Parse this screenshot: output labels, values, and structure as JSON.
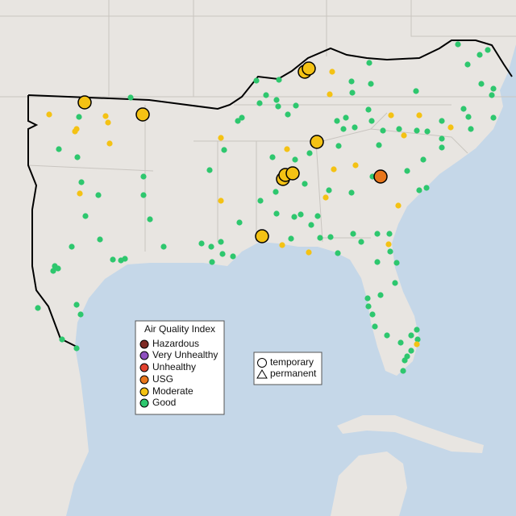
{
  "legend": {
    "title": "Air Quality Index",
    "items": [
      {
        "label": "Hazardous",
        "color": "#7e2b25"
      },
      {
        "label": "Very Unhealthy",
        "color": "#8e4fbf"
      },
      {
        "label": "Unhealthy",
        "color": "#e2422f"
      },
      {
        "label": "USG",
        "color": "#e8761b"
      },
      {
        "label": "Moderate",
        "color": "#f4c214"
      },
      {
        "label": "Good",
        "color": "#2ec76e"
      }
    ]
  },
  "shape_legend": {
    "items": [
      "temporary",
      "permanent"
    ]
  }
}
